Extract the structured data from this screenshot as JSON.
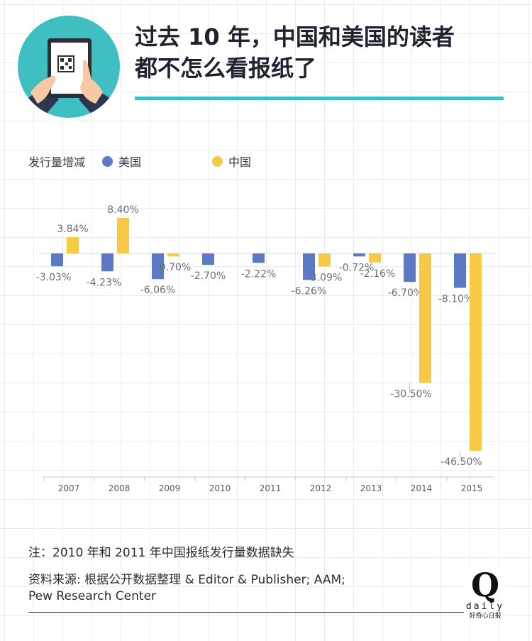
{
  "title": "过去 10 年，中国和美国的读者都不怎么看报纸了",
  "legend": {
    "title": "发行量增减",
    "items": [
      {
        "label": "美国",
        "color": "#5b79c4"
      },
      {
        "label": "中国",
        "color": "#f7c945"
      }
    ]
  },
  "chart_data": {
    "type": "bar",
    "title": "",
    "xlabel": "",
    "ylabel": "发行量增减",
    "categories": [
      "2007",
      "2008",
      "2009",
      "2010",
      "2011",
      "2012",
      "2013",
      "2014",
      "2015"
    ],
    "series": [
      {
        "name": "美国",
        "color": "#5b79c4",
        "values": [
          -3.03,
          -4.23,
          -6.06,
          -2.7,
          -2.22,
          -6.26,
          -0.72,
          -6.7,
          -8.1
        ],
        "labels": [
          "-3.03%",
          "-4.23%",
          "-6.06%",
          "-2.70%",
          "-2.22%",
          "-6.26%",
          "-0.72%",
          "-6.70%",
          "-8.10%"
        ]
      },
      {
        "name": "中国",
        "color": "#f7c945",
        "values": [
          3.84,
          8.4,
          -0.7,
          null,
          null,
          -3.09,
          -2.16,
          -30.5,
          -46.5
        ],
        "labels": [
          "3.84%",
          "8.40%",
          "-0.70%",
          "",
          "",
          "-3.09%",
          "-2.16%",
          "-30.50%",
          "-46.50%"
        ]
      }
    ],
    "ylim": [
      -50,
      10
    ],
    "grid": true,
    "legend_position": "top-left"
  },
  "footnote": "注：2010 年和 2011 年中国报纸发行量数据缺失",
  "source": {
    "line1": "资料来源: 根据公开数据整理 & Editor & Publisher; AAM;",
    "line2": "Pew Research Center"
  },
  "brand": {
    "mark": "Q",
    "word": "daily",
    "cn": "好奇心日报"
  },
  "icons": {
    "header": "tablet-qr-hands-icon"
  }
}
